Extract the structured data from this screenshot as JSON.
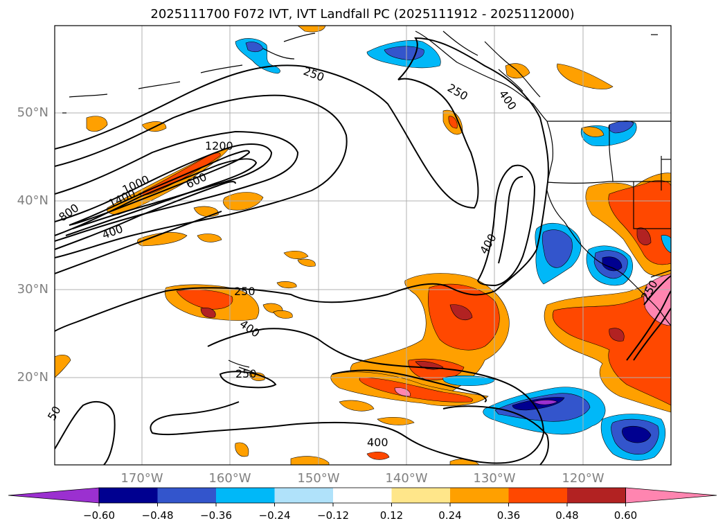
{
  "title": "2025111700 F072 IVT, IVT Landfall PC (2025111912 - 2025112000)",
  "lat_labels": [
    "50°N",
    "40°N",
    "30°N",
    "20°N"
  ],
  "lon_labels": [
    "170°W",
    "160°W",
    "150°W",
    "140°W",
    "130°W",
    "120°W"
  ],
  "contour_labels": [
    "250",
    "250",
    "400",
    "1200",
    "1000",
    "800",
    "1400",
    "600",
    "400",
    "250",
    "400",
    "400",
    "250",
    "400",
    "250",
    "50"
  ],
  "colorbar": {
    "ticks": [
      "−0.60",
      "−0.48",
      "−0.36",
      "−0.24",
      "−0.12",
      "0.12",
      "0.24",
      "0.36",
      "0.48",
      "0.60"
    ],
    "colors": [
      "#9b30d0",
      "#000090",
      "#3355cc",
      "#00b8f8",
      "#b0e2fa",
      "#ffffff",
      "#ffe68a",
      "#ffa000",
      "#ff4800",
      "#b22222",
      "#ff85b0"
    ]
  }
}
